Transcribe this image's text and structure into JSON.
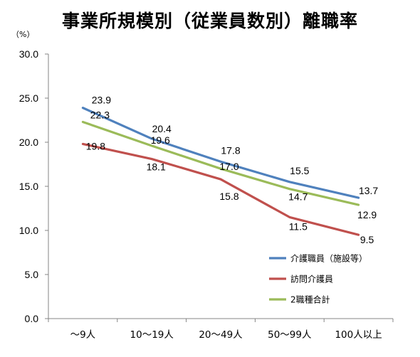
{
  "chart_data": {
    "type": "line",
    "title": "事業所規模別（従業員数別）離職率",
    "unit": "（%）",
    "categories": [
      "～9人",
      "10～19人",
      "20～49人",
      "50～99人",
      "100人以上"
    ],
    "ylim": [
      0,
      30
    ],
    "yticks": [
      "0.0",
      "5.0",
      "10.0",
      "15.0",
      "20.0",
      "25.0",
      "30.0"
    ],
    "grid": false,
    "legend_position": "bottom-right",
    "series": [
      {
        "name": "介護職員（施設等）",
        "color": "#4F81BD",
        "values": [
          23.9,
          20.4,
          17.8,
          15.5,
          13.7
        ],
        "labels": [
          "23.9",
          "20.4",
          "17.8",
          "15.5",
          "13.7"
        ]
      },
      {
        "name": "訪問介護員",
        "color": "#C0504D",
        "values": [
          19.8,
          18.1,
          15.8,
          11.5,
          9.5
        ],
        "labels": [
          "19.8",
          "18.1",
          "15.8",
          "11.5",
          "9.5"
        ]
      },
      {
        "name": "2職種合計",
        "color": "#9BBB59",
        "values": [
          22.3,
          19.6,
          17.0,
          14.7,
          12.9
        ],
        "labels": [
          "22.3",
          "19.6",
          "17.0",
          "14.7",
          "12.9"
        ]
      }
    ]
  }
}
